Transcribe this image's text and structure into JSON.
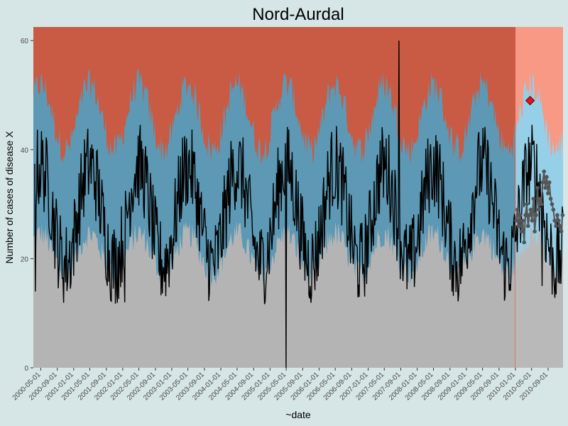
{
  "chart_data": {
    "type": "area",
    "title": "Nord-Aurdal",
    "xlabel": "~date",
    "ylabel": "Number of cases of disease X",
    "ylim": [
      0,
      62.5
    ],
    "xlim": [
      "2000-03-07",
      "2010-12-21"
    ],
    "y_ticks": [
      0,
      20,
      40,
      60
    ],
    "x_tick_dates": [
      "2000-05-01",
      "2000-09-01",
      "2001-01-01",
      "2001-05-01",
      "2001-09-01",
      "2002-01-01",
      "2002-05-01",
      "2002-09-01",
      "2003-01-01",
      "2003-05-01",
      "2003-09-01",
      "2004-01-01",
      "2004-05-01",
      "2004-09-01",
      "2005-01-01",
      "2005-05-01",
      "2005-09-01",
      "2006-01-01",
      "2006-05-01",
      "2006-09-01",
      "2007-01-01",
      "2007-05-01",
      "2007-09-01",
      "2008-01-01",
      "2008-05-01",
      "2008-09-01",
      "2009-01-01",
      "2009-05-01",
      "2009-09-01",
      "2010-01-01",
      "2010-05-01",
      "2010-09-01"
    ],
    "prediction_start": "2010-01-01",
    "threshold_bands": {
      "lower_bound_approx": 18,
      "upper_bound_approx": 44,
      "seasonal_amplitude": 6,
      "seasonal_peak_month": 5
    },
    "observed_series": {
      "baseline": 28,
      "seasonal_amplitude": 9,
      "peak_month": 5,
      "noise_range": 8,
      "notable_points": [
        {
          "date": "2005-05-01",
          "value": 0
        },
        {
          "date": "2002-01-15",
          "value": 12
        },
        {
          "date": "2000-03-20",
          "value": 14
        },
        {
          "date": "2007-08-20",
          "value": 60
        },
        {
          "date": "2010-07-20",
          "value": 15
        }
      ]
    },
    "predicted_series_values": [
      27,
      29,
      26,
      28,
      25,
      27,
      23,
      28,
      30,
      26,
      28,
      29,
      27,
      31,
      25,
      28,
      33,
      29,
      31,
      30,
      34,
      36,
      33,
      35,
      32,
      34,
      31,
      30,
      29,
      27,
      26,
      28,
      27,
      26,
      25,
      28
    ],
    "alert_point": {
      "date": "2010-04-20",
      "value": 49
    },
    "colors": {
      "upper_zone": "#c95a43",
      "upper_zone_pred": "#f7917a",
      "mid_zone": "#5d99b4",
      "mid_zone_pred": "#8ccde6",
      "low_zone": "#b4b4b4",
      "observed_line": "#000000",
      "predicted_line": "#555555",
      "alert_marker": "#e3121f",
      "panel_background": "#d6e5e5"
    }
  }
}
